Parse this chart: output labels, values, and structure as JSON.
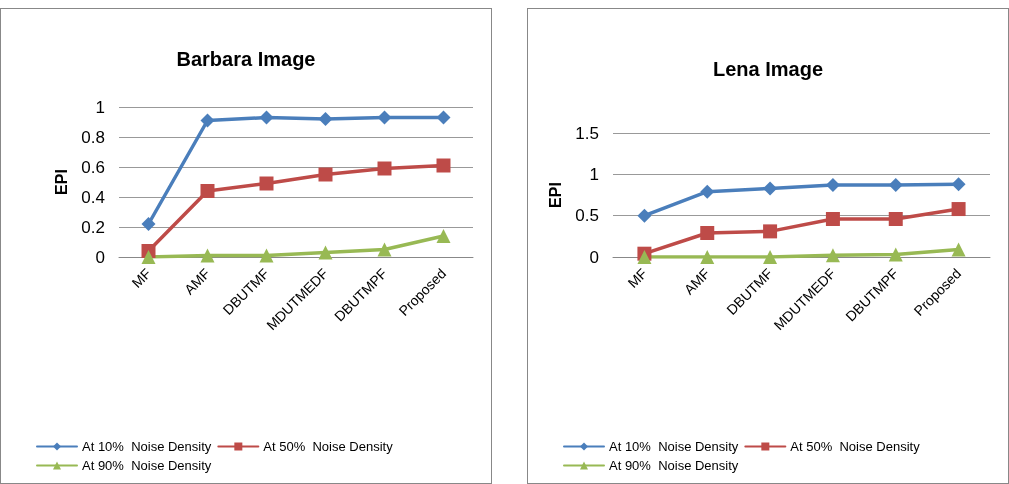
{
  "chart_data": [
    {
      "type": "line",
      "title": "Barbara Image",
      "ylabel": "EPI",
      "categories": [
        "MF",
        "AMF",
        "DBUTMF",
        "MDUTMEDF",
        "DBUTMPF",
        "Proposed"
      ],
      "ylim": [
        0,
        1
      ],
      "yticks": [
        0,
        0.2,
        0.4,
        0.6,
        0.8,
        1
      ],
      "grid": "y",
      "legend": "bottom",
      "line_style": "solid",
      "series": [
        {
          "name": "At 10%  Noise Density",
          "color": "#4a7ebb",
          "marker": "diamond",
          "values": [
            0.22,
            0.91,
            0.93,
            0.92,
            0.93,
            0.93
          ]
        },
        {
          "name": "At 50%  Noise Density",
          "color": "#be4b48",
          "marker": "square",
          "values": [
            0.04,
            0.44,
            0.49,
            0.55,
            0.59,
            0.61
          ]
        },
        {
          "name": "At 90%  Noise Density",
          "color": "#98b954",
          "marker": "triangle",
          "values": [
            0,
            0.01,
            0.01,
            0.03,
            0.05,
            0.14
          ]
        }
      ]
    },
    {
      "type": "line",
      "title": "Lena Image",
      "ylabel": "EPI",
      "categories": [
        "MF",
        "AMF",
        "DBUTMF",
        "MDUTMEDF",
        "DBUTMPF",
        "Proposed"
      ],
      "ylim": [
        0,
        1.5
      ],
      "yticks": [
        0,
        0.5,
        1,
        1.5
      ],
      "grid": "y",
      "legend": "bottom",
      "line_style": "solid",
      "series": [
        {
          "name": "At 10%  Noise Density",
          "color": "#4a7ebb",
          "marker": "diamond",
          "values": [
            0.5,
            0.79,
            0.83,
            0.87,
            0.87,
            0.88
          ]
        },
        {
          "name": "At 50%  Noise Density",
          "color": "#be4b48",
          "marker": "square",
          "values": [
            0.04,
            0.29,
            0.31,
            0.46,
            0.46,
            0.58
          ]
        },
        {
          "name": "At 90%  Noise Density",
          "color": "#98b954",
          "marker": "triangle",
          "values": [
            0,
            0,
            0,
            0.02,
            0.03,
            0.09
          ]
        }
      ]
    }
  ]
}
